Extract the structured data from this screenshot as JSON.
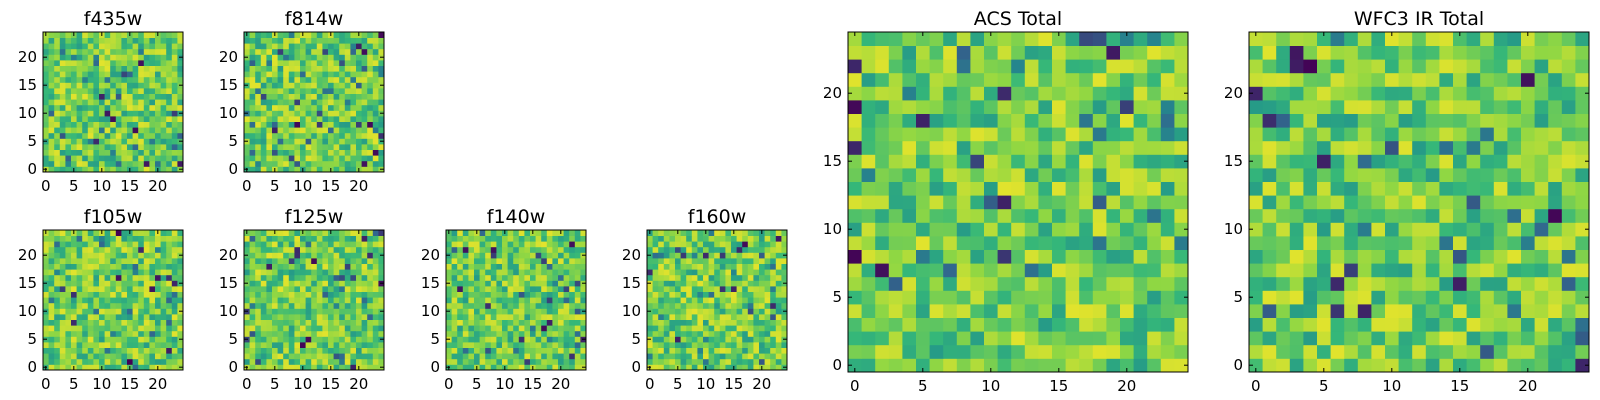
{
  "colormap": [
    "#440154",
    "#31688e",
    "#21918c",
    "#35b779",
    "#90d743",
    "#fde725"
  ],
  "chart_data": [
    {
      "type": "heatmap",
      "title": "f435w",
      "grid_size": 25,
      "xlim": [
        0,
        24
      ],
      "ylim": [
        0,
        24
      ],
      "xticks": [
        "0",
        "5",
        "10",
        "15",
        "20"
      ],
      "yticks": [
        "0",
        "5",
        "10",
        "15",
        "20"
      ],
      "xlabel": "",
      "ylabel": "",
      "legend": "none",
      "grid": false,
      "seed": 435
    },
    {
      "type": "heatmap",
      "title": "f814w",
      "grid_size": 25,
      "xlim": [
        0,
        24
      ],
      "ylim": [
        0,
        24
      ],
      "xticks": [
        "0",
        "5",
        "10",
        "15",
        "20"
      ],
      "yticks": [
        "0",
        "5",
        "10",
        "15",
        "20"
      ],
      "xlabel": "",
      "ylabel": "",
      "legend": "none",
      "grid": false,
      "seed": 814
    },
    {
      "type": "heatmap",
      "title": "f105w",
      "grid_size": 25,
      "xlim": [
        0,
        24
      ],
      "ylim": [
        0,
        24
      ],
      "xticks": [
        "0",
        "5",
        "10",
        "15",
        "20"
      ],
      "yticks": [
        "0",
        "5",
        "10",
        "15",
        "20"
      ],
      "xlabel": "",
      "ylabel": "",
      "legend": "none",
      "grid": false,
      "seed": 105
    },
    {
      "type": "heatmap",
      "title": "f125w",
      "grid_size": 25,
      "xlim": [
        0,
        24
      ],
      "ylim": [
        0,
        24
      ],
      "xticks": [
        "0",
        "5",
        "10",
        "15",
        "20"
      ],
      "yticks": [
        "0",
        "5",
        "10",
        "15",
        "20"
      ],
      "xlabel": "",
      "ylabel": "",
      "legend": "none",
      "grid": false,
      "seed": 125
    },
    {
      "type": "heatmap",
      "title": "f140w",
      "grid_size": 25,
      "xlim": [
        0,
        24
      ],
      "ylim": [
        0,
        24
      ],
      "xticks": [
        "0",
        "5",
        "10",
        "15",
        "20"
      ],
      "yticks": [
        "0",
        "5",
        "10",
        "15",
        "20"
      ],
      "xlabel": "",
      "ylabel": "",
      "legend": "none",
      "grid": false,
      "seed": 140
    },
    {
      "type": "heatmap",
      "title": "f160w",
      "grid_size": 25,
      "xlim": [
        0,
        24
      ],
      "ylim": [
        0,
        24
      ],
      "xticks": [
        "0",
        "5",
        "10",
        "15",
        "20"
      ],
      "yticks": [
        "0",
        "5",
        "10",
        "15",
        "20"
      ],
      "xlabel": "",
      "ylabel": "",
      "legend": "none",
      "grid": false,
      "seed": 160
    },
    {
      "type": "heatmap",
      "title": "ACS Total",
      "grid_size": 25,
      "xlim": [
        0,
        24
      ],
      "ylim": [
        0,
        24
      ],
      "xticks": [
        "0",
        "5",
        "10",
        "15",
        "20"
      ],
      "yticks": [
        "0",
        "5",
        "10",
        "15",
        "20"
      ],
      "xlabel": "",
      "ylabel": "",
      "legend": "none",
      "grid": false,
      "seed": 1001
    },
    {
      "type": "heatmap",
      "title": "WFC3 IR Total",
      "grid_size": 25,
      "xlim": [
        0,
        24
      ],
      "ylim": [
        0,
        24
      ],
      "xticks": [
        "0",
        "5",
        "10",
        "15",
        "20"
      ],
      "yticks": [
        "0",
        "5",
        "10",
        "15",
        "20"
      ],
      "xlabel": "",
      "ylabel": "",
      "legend": "none",
      "grid": false,
      "seed": 2002
    }
  ]
}
